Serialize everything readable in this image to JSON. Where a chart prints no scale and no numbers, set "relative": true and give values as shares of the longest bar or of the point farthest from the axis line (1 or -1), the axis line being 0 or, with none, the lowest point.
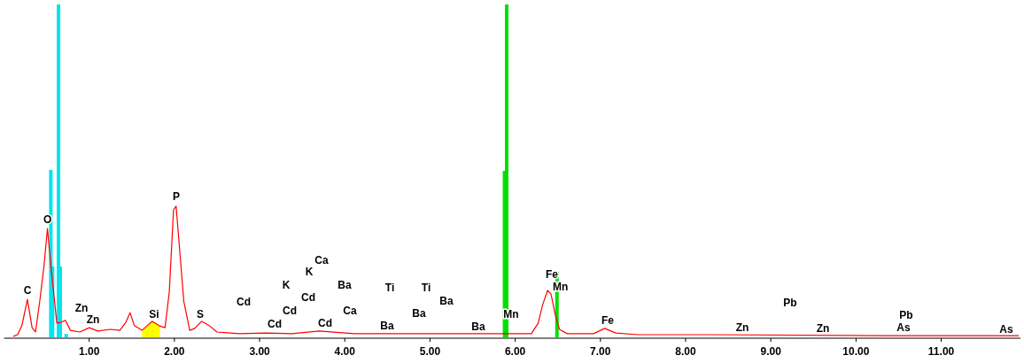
{
  "chart_data": {
    "type": "line",
    "relative": true,
    "xlim": [
      0,
      11.93
    ],
    "xticks": [
      {
        "value": 1,
        "label": "1.00"
      },
      {
        "value": 2,
        "label": "2.00"
      },
      {
        "value": 3,
        "label": "3.00"
      },
      {
        "value": 4,
        "label": "4.00"
      },
      {
        "value": 5,
        "label": "5.00"
      },
      {
        "value": 6,
        "label": "6.00"
      },
      {
        "value": 7,
        "label": "7.00"
      },
      {
        "value": 8,
        "label": "8.00"
      },
      {
        "value": 9,
        "label": "9.00"
      },
      {
        "value": 10,
        "label": "10.00"
      },
      {
        "value": 11,
        "label": "11.00"
      }
    ],
    "series": [
      {
        "type": "area",
        "color": "#ffff00",
        "x": [
          1.62,
          1.68,
          1.74,
          1.82,
          1.83
        ],
        "values": [
          0.021,
          0.035,
          0.048,
          0.035,
          0.033
        ]
      },
      {
        "type": "bar",
        "color": "#00e5ee",
        "x": [
          0.55,
          0.57,
          0.64,
          0.66,
          0.73
        ],
        "values": [
          0.503,
          0.213,
          1.0,
          0.213,
          0.01
        ]
      },
      {
        "type": "bar",
        "color": "#00e000",
        "x": [
          5.875,
          5.9,
          6.49
        ],
        "values": [
          0.5,
          1.0,
          0.197
        ]
      },
      {
        "color": "#ff0000",
        "x": [
          0.11,
          0.16,
          0.21,
          0.275,
          0.33,
          0.37,
          0.42,
          0.47,
          0.51,
          0.55,
          0.59,
          0.62,
          0.67,
          0.72,
          0.78,
          0.89,
          1.0,
          1.1,
          1.25,
          1.36,
          1.43,
          1.48,
          1.53,
          1.62,
          1.68,
          1.74,
          1.82,
          1.89,
          1.94,
          1.99,
          2.02,
          2.06,
          2.11,
          2.18,
          2.24,
          2.32,
          2.41,
          2.5,
          2.76,
          3.07,
          3.38,
          3.7,
          4.11,
          6.19,
          6.27,
          6.32,
          6.38,
          6.42,
          6.47,
          6.52,
          6.61,
          6.92,
          7.05,
          7.18,
          7.44,
          8.27,
          10.35,
          11.91
        ],
        "values": [
          0.003,
          0.008,
          0.035,
          0.114,
          0.029,
          0.016,
          0.109,
          0.215,
          0.327,
          0.215,
          0.117,
          0.043,
          0.045,
          0.051,
          0.021,
          0.016,
          0.029,
          0.019,
          0.024,
          0.021,
          0.045,
          0.074,
          0.035,
          0.021,
          0.035,
          0.048,
          0.035,
          0.029,
          0.136,
          0.383,
          0.394,
          0.269,
          0.109,
          0.021,
          0.027,
          0.048,
          0.035,
          0.016,
          0.011,
          0.013,
          0.011,
          0.019,
          0.011,
          0.011,
          0.043,
          0.096,
          0.141,
          0.13,
          0.069,
          0.024,
          0.011,
          0.011,
          0.027,
          0.013,
          0.008,
          0.008,
          0.005,
          0.005
        ]
      }
    ],
    "annotations": [
      "C",
      {
        "text": "O",
        "x": 0.51,
        "y": 0.354
      },
      "Zn",
      "Zn",
      "Si",
      "P",
      "S",
      "Cd",
      "Cd",
      "Cd",
      "K",
      "Cd",
      "K",
      "Ca",
      "Ba",
      "Ca",
      "Cd",
      "Ti",
      "Ba",
      "Ti",
      "Ba",
      "Ba",
      "Ba",
      {
        "text": "Mn",
        "x": 5.95,
        "y": 0.069
      },
      {
        "text": "Fe",
        "x": 6.43,
        "y": 0.189
      },
      {
        "text": "Mn",
        "x": 6.53,
        "y": 0.152
      },
      "Fe",
      "Zn",
      "Pb",
      "Zn",
      "Pb",
      "As",
      "As"
    ]
  }
}
